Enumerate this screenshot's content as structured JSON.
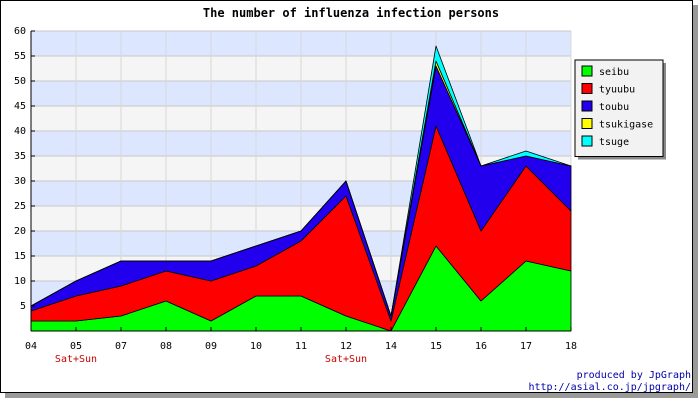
{
  "chart_data": {
    "type": "area",
    "stacked": true,
    "title": "The number of influenza infection persons",
    "categories": [
      "04",
      "05",
      "07",
      "08",
      "09",
      "10",
      "11",
      "12",
      "14",
      "15",
      "16",
      "17",
      "18"
    ],
    "category_notes": [
      {
        "index": 1,
        "text": "Sat+Sun"
      },
      {
        "index": 7,
        "text": "Sat+Sun"
      }
    ],
    "ylim": [
      0,
      60
    ],
    "yticks": [
      5,
      10,
      15,
      20,
      25,
      30,
      35,
      40,
      45,
      50,
      55,
      60
    ],
    "grid": true,
    "legend_position": "right",
    "series": [
      {
        "name": "seibu",
        "color": "#00ff00",
        "values": [
          2,
          2,
          3,
          6,
          2,
          7,
          7,
          3,
          0,
          17,
          6,
          14,
          12
        ]
      },
      {
        "name": "tyuubu",
        "color": "#ff0000",
        "values": [
          2,
          5,
          6,
          6,
          8,
          6,
          11,
          24,
          2,
          24,
          14,
          19,
          12
        ]
      },
      {
        "name": "toubu",
        "color": "#2200ee",
        "values": [
          1,
          3,
          5,
          2,
          4,
          4,
          2,
          3,
          1,
          12,
          13,
          2,
          9
        ]
      },
      {
        "name": "tsukigase",
        "color": "#ffff00",
        "values": [
          0,
          0,
          0,
          0,
          0,
          0,
          0,
          0,
          0,
          1,
          0,
          0,
          0
        ]
      },
      {
        "name": "tsuge",
        "color": "#00ffff",
        "values": [
          0,
          0,
          0,
          0,
          0,
          0,
          0,
          0,
          0,
          3,
          0,
          1,
          0
        ]
      }
    ]
  },
  "credits": {
    "line1": "produced by JpGraph",
    "line2": "http://asial.co.jp/jpgraph/"
  }
}
